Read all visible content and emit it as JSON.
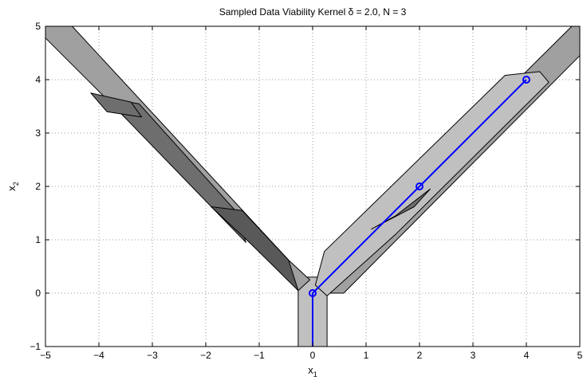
{
  "chart_data": {
    "type": "line",
    "title": "Sampled Data Viability Kernel δ = 2.0, N = 3",
    "xlabel": {
      "base": "x",
      "sub": "1"
    },
    "ylabel": {
      "base": "x",
      "sub": "2"
    },
    "xlim": [
      -5,
      5
    ],
    "ylim": [
      -1,
      5
    ],
    "xticks": [
      -5,
      -4,
      -3,
      -2,
      -1,
      0,
      1,
      2,
      3,
      4,
      5
    ],
    "yticks": [
      -1,
      0,
      1,
      2,
      3,
      4,
      5
    ],
    "xtick_labels": [
      "−5",
      "−4",
      "−3",
      "−2",
      "−1",
      "0",
      "1",
      "2",
      "3",
      "4",
      "5"
    ],
    "ytick_labels": [
      "−1",
      "0",
      "1",
      "2",
      "3",
      "4",
      "5"
    ],
    "grid": true,
    "colors": {
      "light_region": "#c0c0c0",
      "medium_region": "#a0a0a0",
      "dark_region": "#6e6e6e",
      "darker_region": "#595959",
      "trajectory": "#0000ff",
      "outline": "#000000",
      "grid": "#7f7f7f"
    },
    "regions": [
      {
        "name": "stem-band",
        "shade": "light",
        "polygon": [
          [
            -0.27,
            -1
          ],
          [
            0.27,
            -1
          ],
          [
            0.27,
            0.3
          ],
          [
            -0.27,
            0.3
          ]
        ]
      },
      {
        "name": "right-arm-outer",
        "shade": "medium",
        "polygon": [
          [
            0.12,
            0.3
          ],
          [
            4.85,
            5.0
          ],
          [
            5.0,
            5.0
          ],
          [
            5.0,
            4.45
          ],
          [
            0.58,
            0.0
          ],
          [
            0.27,
            0.0
          ]
        ]
      },
      {
        "name": "right-arm-inner",
        "shade": "light",
        "polygon": [
          [
            0.05,
            0.15
          ],
          [
            0.22,
            0.78
          ],
          [
            3.6,
            4.08
          ],
          [
            4.25,
            4.15
          ],
          [
            4.42,
            3.95
          ],
          [
            1.55,
            1.1
          ],
          [
            0.27,
            -0.05
          ]
        ]
      },
      {
        "name": "left-arm",
        "shade": "medium",
        "polygon": [
          [
            -5.0,
            4.78
          ],
          [
            -5.0,
            5.0
          ],
          [
            -4.5,
            5.0
          ],
          [
            -0.45,
            0.62
          ],
          [
            -0.05,
            0.25
          ],
          [
            -0.27,
            0.05
          ]
        ]
      },
      {
        "name": "left-arm-dark-segment",
        "shade": "dark",
        "polygon": [
          [
            -3.85,
            3.65
          ],
          [
            -3.25,
            3.55
          ],
          [
            -1.45,
            1.55
          ],
          [
            -1.25,
            0.95
          ],
          [
            -3.62,
            3.4
          ]
        ]
      },
      {
        "name": "left-arm-lower-dark-segment",
        "shade": "darker",
        "polygon": [
          [
            -1.9,
            1.62
          ],
          [
            -1.32,
            1.55
          ],
          [
            -0.45,
            0.62
          ],
          [
            -0.27,
            0.05
          ],
          [
            -1.15,
            0.92
          ]
        ]
      },
      {
        "name": "left-arm-upper-dark-segment",
        "shade": "dark",
        "polygon": [
          [
            -4.15,
            3.75
          ],
          [
            -3.4,
            3.58
          ],
          [
            -3.2,
            3.3
          ],
          [
            -3.85,
            3.4
          ]
        ]
      },
      {
        "name": "right-arm-dark-segment",
        "shade": "dark",
        "polygon": [
          [
            1.1,
            1.2
          ],
          [
            1.9,
            1.62
          ],
          [
            2.2,
            1.95
          ],
          [
            1.55,
            1.45
          ]
        ]
      }
    ],
    "series": [
      {
        "style": "trajectory",
        "x": [
          0,
          0,
          2,
          4
        ],
        "y": [
          -1,
          0,
          2,
          4
        ],
        "markers": [
          [
            0,
            0
          ],
          [
            2,
            2
          ],
          [
            4,
            4
          ]
        ]
      }
    ]
  }
}
